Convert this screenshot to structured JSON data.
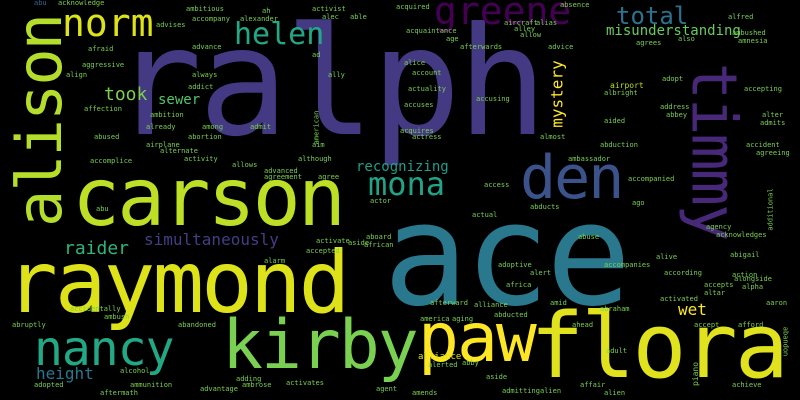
{
  "words": {
    "ralph": "ralph",
    "ace": "ace",
    "raymond": "raymond",
    "carson": "carson",
    "flora": "flora",
    "kirby": "kirby",
    "paw": "paw",
    "alison": "alison",
    "timmy": "timmy",
    "den": "den",
    "nancy": "nancy",
    "mona": "mona",
    "norm": "norm",
    "greene": "greene",
    "helen": "helen",
    "total": "total",
    "misunderstanding": "misunderstanding",
    "mystery": "mystery",
    "took": "took",
    "raider": "raider",
    "simultaneously": "simultaneously",
    "sewer": "sewer",
    "recognizing": "recognizing",
    "wet": "wet",
    "height": "height",
    "alliance": "alliance",
    "abu": "abu",
    "acknowledge": "acknowledge",
    "ah": "ah",
    "activist": "activist",
    "acquired": "acquired",
    "absence": "absence",
    "aircraft": "aircraft",
    "alias": "alias",
    "alley": "alley",
    "allow": "allow",
    "advice": "advice",
    "airport": "airport",
    "albright": "albright",
    "aided": "aided",
    "abduction": "abduction",
    "abortion": "abortion",
    "admit": "admit",
    "american": "american",
    "aim": "aim",
    "accompanied": "accompanied",
    "agreeing": "agreeing",
    "accident": "accident",
    "ambulance": "ambulance",
    "accepting": "accepting",
    "address": "address",
    "abbey": "abbey",
    "alter": "alter",
    "admits": "admits",
    "accused": "accused",
    "abigail": "abigail",
    "acknowledges": "acknowledges",
    "alive": "alive",
    "agency": "agency",
    "alongside": "alongside",
    "alpha": "alpha",
    "action": "action",
    "accepts": "accepts",
    "altar": "altar",
    "activated": "activated",
    "aaron": "aaron",
    "afford": "afford",
    "accept": "accept",
    "adult": "adult",
    "alien": "alien",
    "affair": "affair",
    "achieve": "achieve",
    "piano": "piano",
    "abandon": "abandon",
    "ahead": "ahead",
    "abraham": "abraham",
    "amid": "amid",
    "alert": "alert",
    "adoptive": "adoptive",
    "accompanies": "accompanies",
    "according": "according",
    "africa": "africa",
    "abuse": "abuse",
    "african": "african",
    "aside": "aside",
    "abroad": "abroad",
    "activate": "activate",
    "accepted": "accepted",
    "alarm": "alarm",
    "abandoned": "abandoned",
    "ambush": "ambush",
    "abruptly": "abruptly",
    "accidentally": "accidentally",
    "amends": "amends",
    "agent": "agent",
    "advantage": "advantage",
    "adding": "adding",
    "ambrose": "ambrose",
    "ammunition": "ammunition",
    "alternate": "alternate",
    "alcohol": "alcohol",
    "activates": "activates",
    "admitting": "admitting",
    "alerted": "alerted",
    "aging": "aging",
    "america": "america",
    "abby": "abby",
    "advanced": "advanced",
    "agreement": "agreement",
    "although": "although",
    "allows": "allows",
    "activity": "activity",
    "accomplice": "accomplice",
    "airplane": "airplane",
    "abused": "abused",
    "already": "already",
    "among": "among",
    "ambition": "ambition",
    "affection": "affection",
    "addict": "addict",
    "always": "always",
    "aggressive": "aggressive",
    "align": "align",
    "afraid": "afraid",
    "ambitious": "ambitious",
    "advises": "advises",
    "alexander": "alexander",
    "accompany": "accompany",
    "alec": "alec",
    "able": "able",
    "acquaintance": "acquaintance",
    "afterwards": "afterwards",
    "addition": "addition",
    "accusing": "accusing",
    "actuality": "actuality",
    "account": "account",
    "alice": "alice",
    "ally": "ally",
    "ad": "ad",
    "age": "age",
    "agrees": "agrees",
    "also": "also",
    "alfred": "alfred",
    "ambushed": "ambushed",
    "amnesia": "amnesia",
    "adopt": "adopt",
    "acquires": "acquires",
    "almost": "almost",
    "actress": "actress",
    "ambassador": "ambassador",
    "ago": "ago",
    "access": "access",
    "actor": "actor",
    "abducts": "abducts",
    "agree": "agree",
    "actual": "actual",
    "afterward": "afterward",
    "abducted": "abducted",
    "alan": "alan",
    "adopted": "adopted",
    "additional": "additional",
    "accuses": "accuses",
    "ability": "ability",
    "aunt": "aunt",
    "advance": "advance",
    "acting": "acting",
    "alcove": "alcove",
    "admiral": "admiral",
    "abusive": "abusive",
    "add": "add",
    "aboard": "aboard",
    "adam": "adam",
    "acres": "acres",
    "allied": "allied",
    "achieves": "achieves",
    "aftermath": "aftermath",
    "adds": "adds",
    "across": "across",
    "air": "air",
    "admiring": "admiring",
    "accomplish": "accomplish"
  }
}
